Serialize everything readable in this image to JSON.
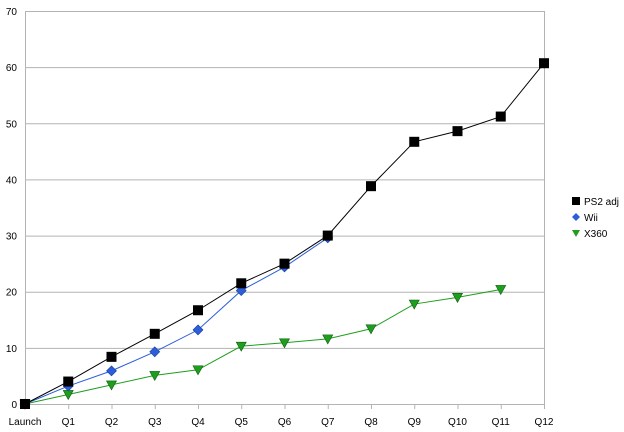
{
  "chart_data": {
    "type": "line",
    "title": "",
    "xlabel": "",
    "ylabel": "",
    "categories": [
      "Launch",
      "Q1",
      "Q2",
      "Q3",
      "Q4",
      "Q5",
      "Q6",
      "Q7",
      "Q8",
      "Q9",
      "Q10",
      "Q11",
      "Q12"
    ],
    "ylim": [
      0,
      70
    ],
    "yticks": [
      0,
      10,
      20,
      30,
      40,
      50,
      60,
      70
    ],
    "grid": "horizontal",
    "legend_position": "right",
    "series": [
      {
        "name": "PS2 adj",
        "color": "#000000",
        "marker": "square",
        "values": [
          0,
          4,
          8.4,
          12.5,
          16.7,
          21.5,
          25,
          30,
          38.8,
          46.7,
          48.6,
          51.2,
          60.7
        ]
      },
      {
        "name": "Wii",
        "color": "#2b5ed8",
        "marker": "diamond",
        "values": [
          0,
          3.2,
          5.9,
          9.3,
          13.2,
          20.2,
          24.4,
          29.6,
          null,
          null,
          null,
          null,
          null
        ]
      },
      {
        "name": "X360",
        "color": "#1e9e1e",
        "marker": "triangle-down",
        "values": [
          0,
          1.7,
          3.4,
          5.1,
          6.1,
          10.3,
          10.9,
          11.6,
          13.4,
          17.8,
          19,
          20.4,
          null
        ]
      }
    ]
  }
}
